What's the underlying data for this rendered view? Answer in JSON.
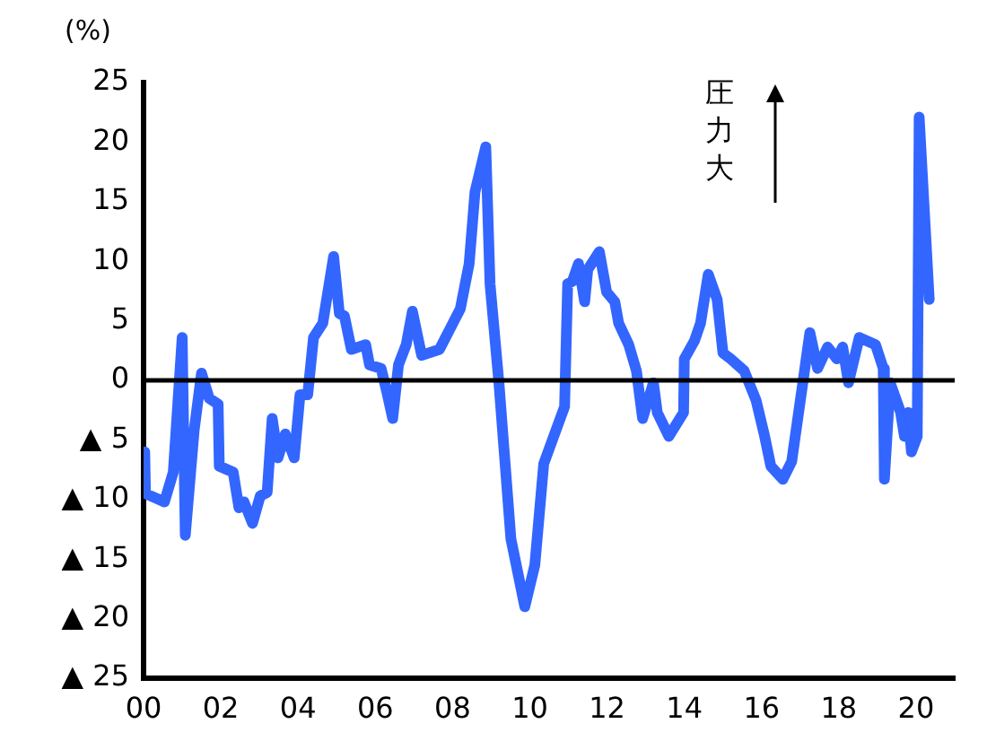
{
  "chart_data": {
    "type": "line",
    "ylabel": "(%)",
    "annotations": [
      "圧力大"
    ],
    "xlim": [
      2000,
      2021
    ],
    "xticks": [
      {
        "value": 2000,
        "label": "00"
      },
      {
        "value": 2002,
        "label": "02"
      },
      {
        "value": 2004,
        "label": "04"
      },
      {
        "value": 2006,
        "label": "06"
      },
      {
        "value": 2008,
        "label": "08"
      },
      {
        "value": 2010,
        "label": "10"
      },
      {
        "value": 2012,
        "label": "12"
      },
      {
        "value": 2014,
        "label": "14"
      },
      {
        "value": 2016,
        "label": "16"
      },
      {
        "value": 2018,
        "label": "18"
      },
      {
        "value": 2020,
        "label": "20"
      }
    ],
    "ylim": [
      -25,
      25
    ],
    "yticks": [
      {
        "value": -25,
        "label": "▲ 25"
      },
      {
        "value": -20,
        "label": "▲ 20"
      },
      {
        "value": -15,
        "label": "▲ 15"
      },
      {
        "value": -10,
        "label": "▲ 10"
      },
      {
        "value": -5,
        "label": "▲ 5"
      },
      0,
      5,
      10,
      15,
      20,
      25
    ],
    "grid": false,
    "legend": false,
    "marker": "none",
    "line_style": "solid",
    "ref_lines": [
      {
        "axis": "y",
        "value": 0,
        "color": "#000000"
      }
    ],
    "series": [
      {
        "color": "#3366ff",
        "x": [
          2000.03,
          2000.05,
          2000.54,
          2000.77,
          2001.0,
          2001.08,
          2001.31,
          2001.5,
          2001.7,
          2001.93,
          2001.96,
          2002.32,
          2002.47,
          2002.6,
          2002.82,
          2003.02,
          2003.2,
          2003.33,
          2003.48,
          2003.67,
          2003.9,
          2004.05,
          2004.25,
          2004.4,
          2004.64,
          2004.92,
          2005.07,
          2005.2,
          2005.38,
          2005.75,
          2005.85,
          2006.15,
          2006.3,
          2006.45,
          2006.6,
          2006.8,
          2006.96,
          2007.2,
          2007.66,
          2008.2,
          2008.43,
          2008.58,
          2008.86,
          2008.97,
          2009.2,
          2009.51,
          2009.87,
          2010.13,
          2010.36,
          2010.9,
          2010.98,
          2011.1,
          2011.26,
          2011.42,
          2011.5,
          2011.8,
          2011.99,
          2012.2,
          2012.3,
          2012.56,
          2012.76,
          2012.92,
          2013.2,
          2013.3,
          2013.6,
          2013.98,
          2014.0,
          2014.26,
          2014.42,
          2014.62,
          2014.85,
          2015.0,
          2015.2,
          2015.55,
          2015.86,
          2016.08,
          2016.24,
          2016.55,
          2016.78,
          2017.09,
          2017.25,
          2017.45,
          2017.71,
          2017.95,
          2018.1,
          2018.25,
          2018.53,
          2018.95,
          2019.15,
          2019.18,
          2019.33,
          2019.6,
          2019.7,
          2019.8,
          2019.88,
          2020.03,
          2020.08,
          2020.34
        ],
        "values": [
          -6,
          -9.5,
          -10.2,
          -7.7,
          3.6,
          -13,
          -4.2,
          0.6,
          -1.5,
          -2,
          -7.2,
          -7.7,
          -10.7,
          -10.2,
          -12,
          -9.7,
          -9.4,
          -3.2,
          -6.5,
          -4.5,
          -6.5,
          -1.2,
          -1.2,
          3.6,
          4.8,
          10.4,
          5.6,
          5.4,
          2.6,
          3,
          1.3,
          1,
          -1,
          -3.2,
          1.3,
          3,
          5.8,
          2.1,
          2.6,
          6,
          9.8,
          15.8,
          19.6,
          8.1,
          -0.2,
          -13.3,
          -19,
          -15.5,
          -7,
          -2.2,
          8.1,
          8.3,
          9.8,
          6.6,
          9.3,
          10.8,
          7.4,
          6.6,
          4.8,
          3,
          0.8,
          -3.2,
          -0.2,
          -2.7,
          -4.7,
          -2.7,
          1.8,
          3.3,
          4.8,
          8.9,
          6.8,
          2.3,
          1.8,
          0.8,
          -1.7,
          -4.7,
          -7.2,
          -8.3,
          -6.8,
          0.3,
          4,
          1,
          2.8,
          1.8,
          2.8,
          -0.2,
          3.6,
          3,
          1,
          -8.3,
          -0.2,
          -2.7,
          -4.7,
          -2.7,
          -6,
          -4.7,
          22.1,
          6.8
        ]
      }
    ]
  }
}
